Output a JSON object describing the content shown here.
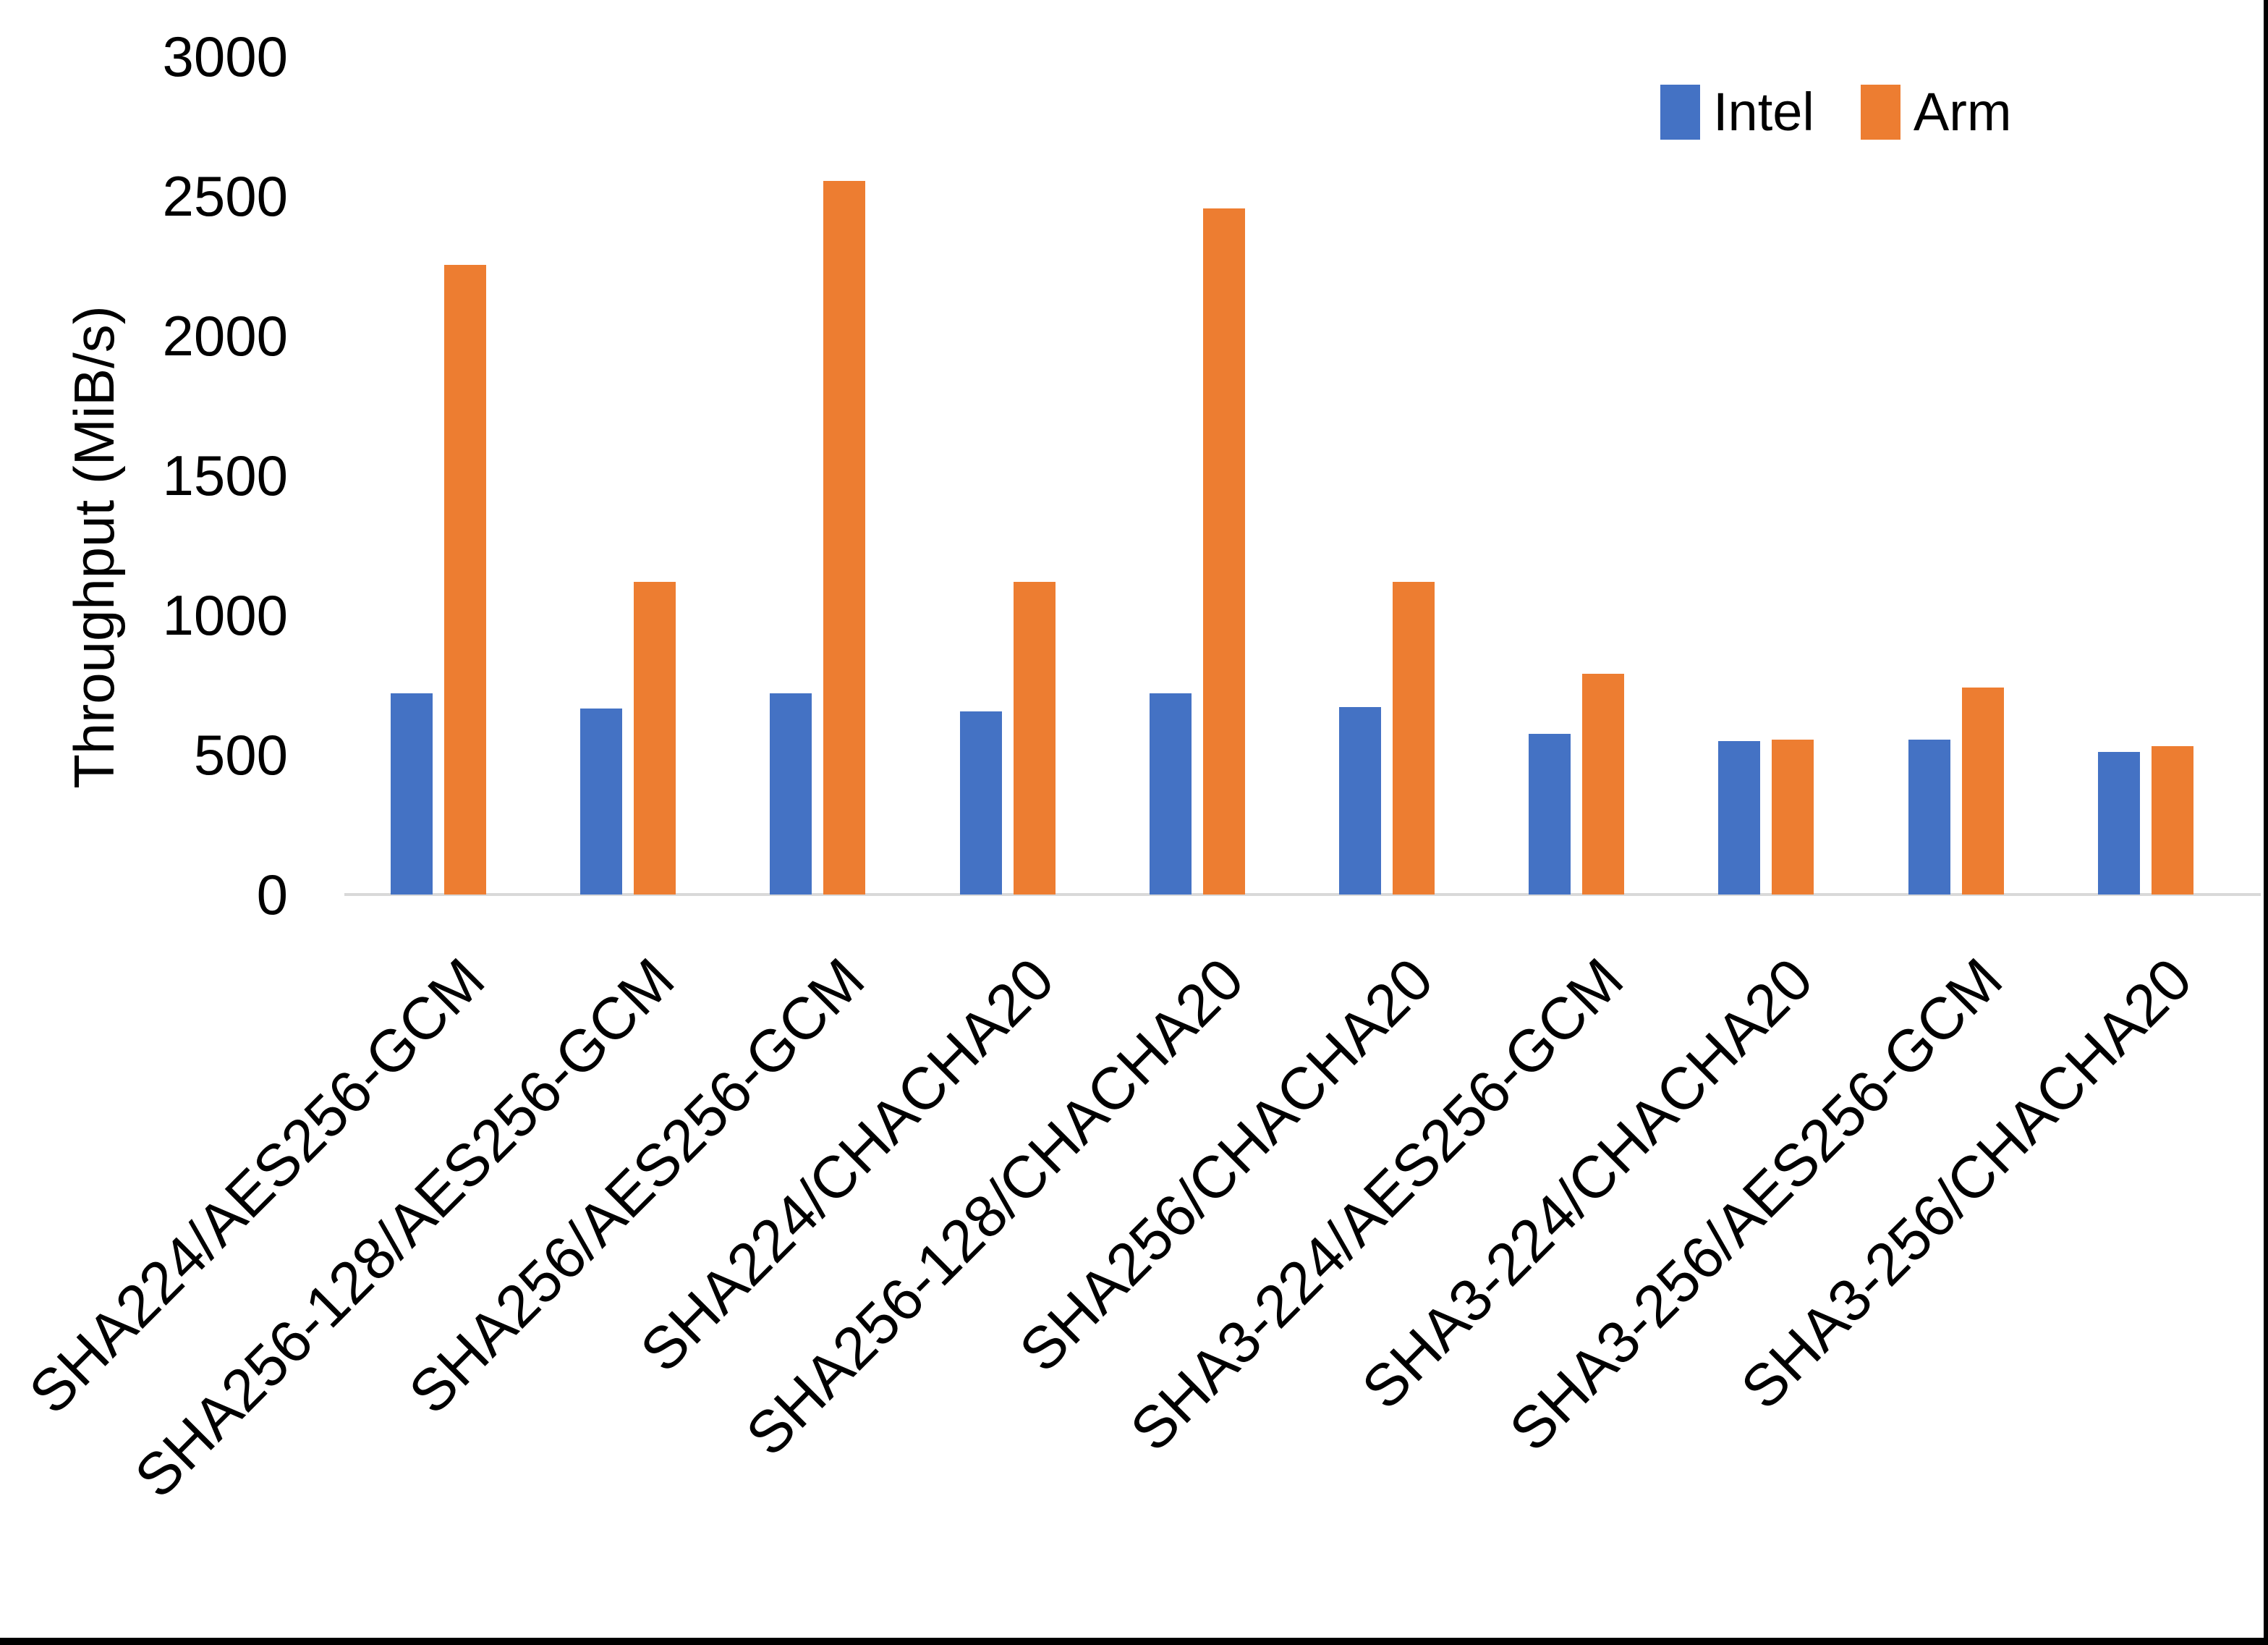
{
  "chart_data": {
    "type": "bar",
    "title": "",
    "xlabel": "",
    "ylabel": "Throughput (MiB/s)",
    "categories": [
      "SHA224/AES256-GCM",
      "SHA256-128/AES256-GCM",
      "SHA256/AES256-GCM",
      "SHA224/CHACHA20",
      "SHA256-128/CHACHA20",
      "SHA256/CHACHA20",
      "SHA3-224/AES256-GCM",
      "SHA3-224/CHACHA20",
      "SHA3-256/AES256-GCM",
      "SHA3-256/CHACHA20"
    ],
    "series": [
      {
        "name": "Intel",
        "color": "#4472C4",
        "values": [
          720,
          665,
          720,
          655,
          720,
          670,
          575,
          550,
          555,
          510
        ]
      },
      {
        "name": "Arm",
        "color": "#ED7D31",
        "values": [
          2255,
          1120,
          2555,
          1120,
          2455,
          1120,
          790,
          555,
          740,
          530
        ]
      }
    ],
    "y_axis": {
      "min": 0,
      "max": 3000,
      "step": 500,
      "ticks": [
        0,
        500,
        1000,
        1500,
        2000,
        2500,
        3000
      ]
    },
    "legend_position": "top-right",
    "grid": false,
    "axis_line_color": "#D9D9D9",
    "text_color": "#000000",
    "background": "#FFFFFF",
    "frame_border_color": "#000000"
  }
}
